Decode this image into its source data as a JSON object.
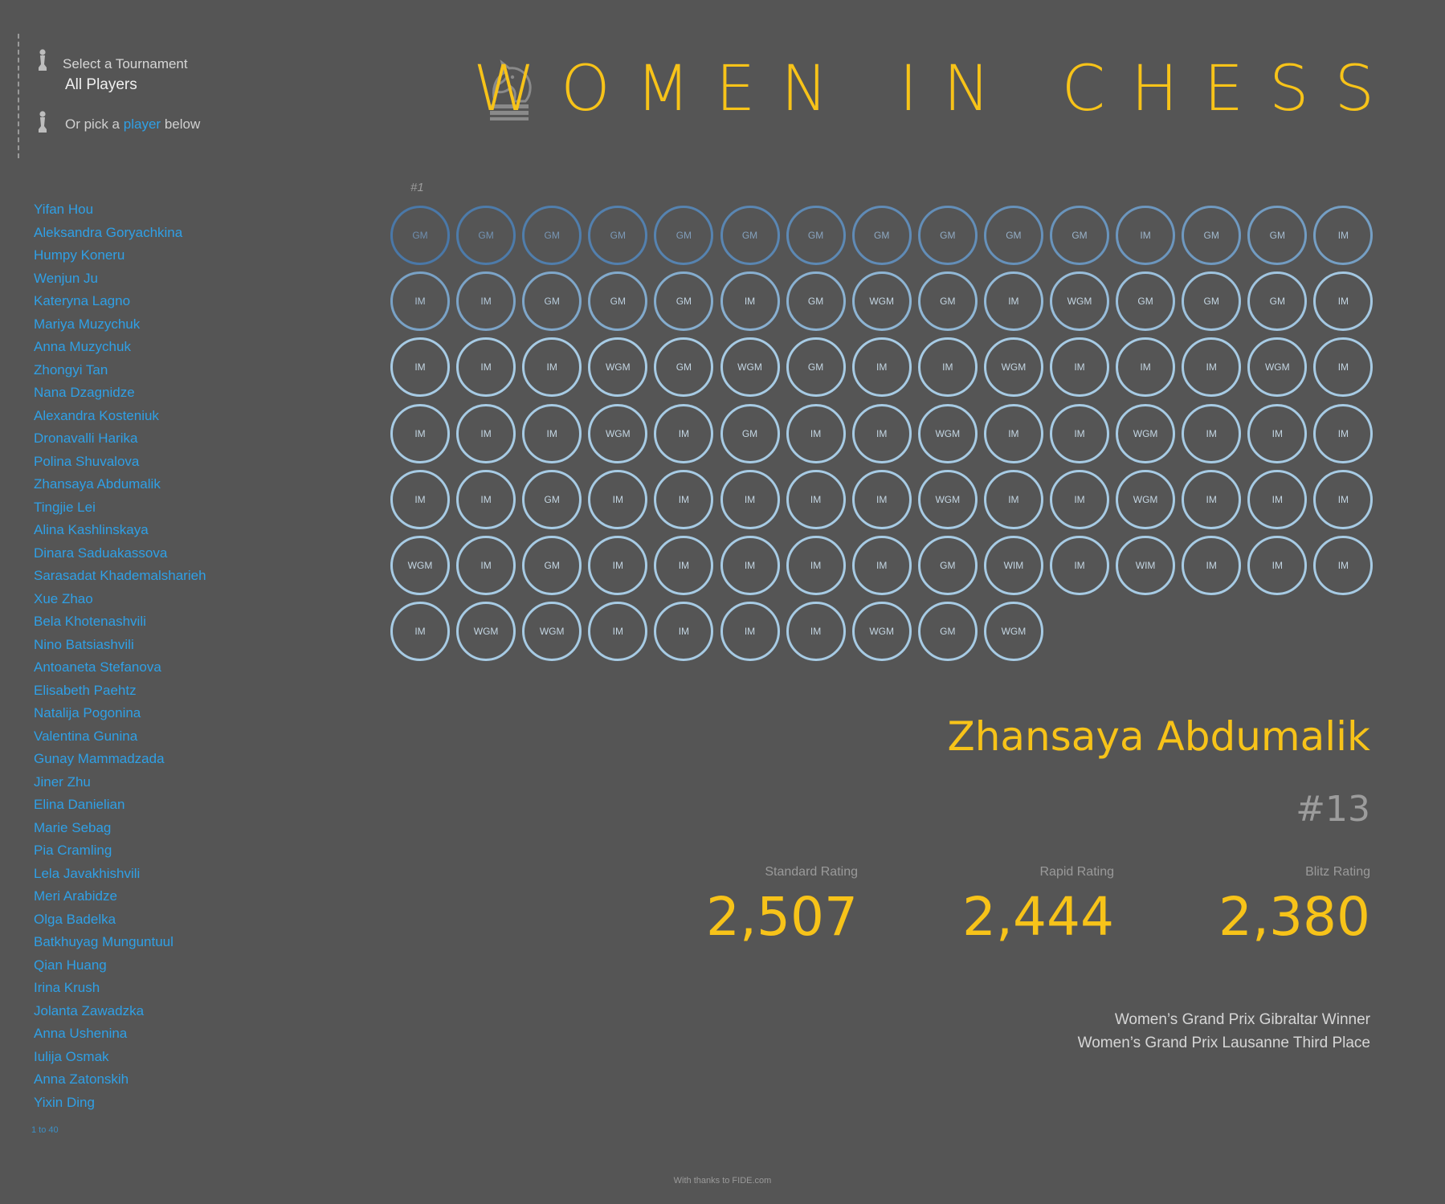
{
  "filter": {
    "select_label": "Select a Tournament",
    "select_value": "All Players",
    "pick_prefix": "Or pick a",
    "pick_highlight": "player",
    "pick_suffix": "below"
  },
  "players": [
    "Yifan Hou",
    "Aleksandra Goryachkina",
    "Humpy Koneru",
    "Wenjun Ju",
    "Kateryna Lagno",
    "Mariya Muzychuk",
    "Anna Muzychuk",
    "Zhongyi Tan",
    "Nana Dzagnidze",
    "Alexandra Kosteniuk",
    "Dronavalli Harika",
    "Polina Shuvalova",
    "Zhansaya Abdumalik",
    "Tingjie Lei",
    "Alina Kashlinskaya",
    "Dinara Saduakassova",
    "Sarasadat Khademalsharieh",
    "Xue Zhao",
    "Bela Khotenashvili",
    "Nino Batsiashvili",
    "Antoaneta Stefanova",
    "Elisabeth Paehtz",
    "Natalija Pogonina",
    "Valentina Gunina",
    "Gunay Mammadzada",
    "Jiner Zhu",
    "Elina Danielian",
    "Marie Sebag",
    "Pia Cramling",
    "Lela Javakhishvili",
    "Meri Arabidze",
    "Olga Badelka",
    "Batkhuyag Munguntuul",
    "Qian Huang",
    "Irina Krush",
    "Jolanta Zawadzka",
    "Anna Ushenina",
    "Iulija Osmak",
    "Anna Zatonskih",
    "Yixin Ding"
  ],
  "list_range": "1 to 40",
  "title": "WOMEN IN CHESS",
  "rank_label": "#1",
  "titles_grid": [
    "GM",
    "GM",
    "GM",
    "GM",
    "GM",
    "GM",
    "GM",
    "GM",
    "GM",
    "GM",
    "GM",
    "IM",
    "GM",
    "GM",
    "IM",
    "IM",
    "IM",
    "GM",
    "GM",
    "GM",
    "IM",
    "GM",
    "WGM",
    "GM",
    "IM",
    "WGM",
    "GM",
    "GM",
    "GM",
    "IM",
    "IM",
    "IM",
    "IM",
    "WGM",
    "GM",
    "WGM",
    "GM",
    "IM",
    "IM",
    "WGM",
    "IM",
    "IM",
    "IM",
    "WGM",
    "IM",
    "IM",
    "IM",
    "IM",
    "WGM",
    "IM",
    "GM",
    "IM",
    "IM",
    "WGM",
    "IM",
    "IM",
    "WGM",
    "IM",
    "IM",
    "IM",
    "IM",
    "IM",
    "GM",
    "IM",
    "IM",
    "IM",
    "IM",
    "IM",
    "WGM",
    "IM",
    "IM",
    "WGM",
    "IM",
    "IM",
    "IM",
    "WGM",
    "IM",
    "GM",
    "IM",
    "IM",
    "IM",
    "IM",
    "IM",
    "GM",
    "WIM",
    "IM",
    "WIM",
    "IM",
    "IM",
    "IM",
    "IM",
    "WGM",
    "WGM",
    "IM",
    "IM",
    "IM",
    "IM",
    "WGM",
    "GM",
    "WGM"
  ],
  "selected": {
    "name": "Zhansaya Abdumalik",
    "rank": "#13",
    "standard_label": "Standard Rating",
    "standard_value": "2,507",
    "rapid_label": "Rapid Rating",
    "rapid_value": "2,444",
    "blitz_label": "Blitz Rating",
    "blitz_value": "2,380",
    "achievements": [
      "Women’s Grand Prix Gibraltar Winner",
      "Women’s Grand Prix Lausanne Third Place"
    ]
  },
  "footer": "With thanks to FIDE.com",
  "colors": {
    "background": "#555555",
    "accent": "#f7c319",
    "link": "#2fa0e6",
    "circle_light": "#a7cbe4",
    "circle_dark": "#4a78a8"
  },
  "icons": {
    "filter_icon": "pawn-icon",
    "title_icon": "knight-icon"
  }
}
